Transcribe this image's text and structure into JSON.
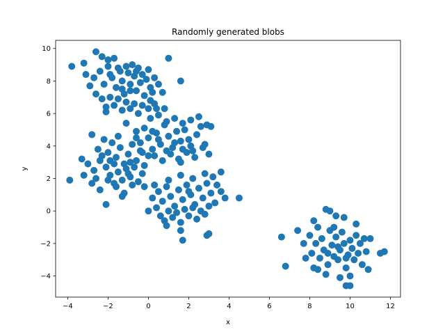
{
  "chart_data": {
    "type": "scatter",
    "title": "Randomly generated blobs",
    "xlabel": "x",
    "ylabel": "y",
    "xlim": [
      -4.6,
      12.5
    ],
    "ylim": [
      -5.3,
      10.5
    ],
    "xticks": [
      -4,
      -2,
      0,
      2,
      4,
      6,
      8,
      10,
      12
    ],
    "yticks": [
      -4,
      -2,
      0,
      2,
      4,
      6,
      8,
      10
    ],
    "grid": false,
    "marker_color": "#1f77b4",
    "series": [
      {
        "points": [
          [
            -3.8,
            8.9
          ],
          [
            -3.2,
            9.1
          ],
          [
            -2.6,
            9.8
          ],
          [
            -2.3,
            9.5
          ],
          [
            -2.0,
            9.3
          ],
          [
            -1.7,
            9.4
          ],
          [
            -3.1,
            8.4
          ],
          [
            -2.7,
            8.2
          ],
          [
            -2.4,
            8.6
          ],
          [
            -2.2,
            7.8
          ],
          [
            -2.0,
            8.9
          ],
          [
            -1.8,
            8.2
          ],
          [
            -1.6,
            7.6
          ],
          [
            -1.5,
            8.8
          ],
          [
            -1.3,
            8.0
          ],
          [
            -1.2,
            7.2
          ],
          [
            -1.0,
            8.5
          ],
          [
            -0.9,
            7.8
          ],
          [
            -0.8,
            9.0
          ],
          [
            -0.7,
            8.3
          ],
          [
            -0.6,
            7.4
          ],
          [
            -0.5,
            8.8
          ],
          [
            -0.4,
            7.9
          ],
          [
            -0.3,
            8.4
          ],
          [
            -0.2,
            7.1
          ],
          [
            -0.1,
            8.1
          ],
          [
            0.0,
            8.7
          ],
          [
            0.1,
            7.6
          ],
          [
            0.3,
            8.2
          ],
          [
            0.5,
            7.8
          ],
          [
            0.7,
            7.3
          ],
          [
            1.0,
            9.4
          ],
          [
            1.6,
            8.0
          ],
          [
            -2.9,
            7.7
          ],
          [
            -2.6,
            7.2
          ],
          [
            -2.3,
            6.9
          ],
          [
            -2.1,
            6.4
          ],
          [
            -1.9,
            7.0
          ],
          [
            -1.7,
            6.5
          ],
          [
            -1.5,
            6.9
          ],
          [
            -1.3,
            6.2
          ],
          [
            -1.1,
            6.7
          ],
          [
            -0.9,
            6.3
          ],
          [
            -0.7,
            6.6
          ],
          [
            -0.5,
            6.0
          ],
          [
            -0.3,
            6.5
          ],
          [
            0.1,
            6.8
          ],
          [
            0.4,
            6.3
          ],
          [
            -1.9,
            8.4
          ],
          [
            -1.4,
            8.6
          ],
          [
            -1.1,
            8.9
          ],
          [
            -0.6,
            8.6
          ],
          [
            -0.9,
            7.4
          ],
          [
            -1.3,
            7.5
          ],
          [
            0.2,
            7.3
          ],
          [
            -2.1,
            6.1
          ]
        ]
      },
      {
        "points": [
          [
            -2.8,
            4.7
          ],
          [
            -2.5,
            3.8
          ],
          [
            -2.2,
            4.4
          ],
          [
            -2.0,
            3.6
          ],
          [
            -1.8,
            4.2
          ],
          [
            -1.6,
            3.3
          ],
          [
            -1.4,
            3.9
          ],
          [
            -1.2,
            2.9
          ],
          [
            -1.0,
            3.5
          ],
          [
            -0.8,
            4.1
          ],
          [
            -0.6,
            3.1
          ],
          [
            -0.4,
            3.7
          ],
          [
            -0.2,
            2.8
          ],
          [
            0.0,
            3.4
          ],
          [
            -3.3,
            3.2
          ],
          [
            -3.0,
            2.9
          ],
          [
            -2.7,
            2.5
          ],
          [
            -2.4,
            3.1
          ],
          [
            -2.1,
            2.7
          ],
          [
            -1.9,
            2.2
          ],
          [
            -1.7,
            2.9
          ],
          [
            -1.5,
            2.4
          ],
          [
            -1.3,
            1.9
          ],
          [
            -1.1,
            2.6
          ],
          [
            -0.9,
            2.1
          ],
          [
            -0.7,
            2.7
          ],
          [
            -0.5,
            1.8
          ],
          [
            -0.3,
            2.3
          ],
          [
            -3.9,
            1.9
          ],
          [
            -3.2,
            2.2
          ],
          [
            -2.8,
            1.7
          ],
          [
            -2.4,
            1.3
          ],
          [
            -2.0,
            1.9
          ],
          [
            -1.6,
            1.5
          ],
          [
            -1.2,
            1.1
          ],
          [
            -0.8,
            1.6
          ],
          [
            -2.1,
            0.4
          ],
          [
            -1.3,
            0.9
          ],
          [
            -1.1,
            5.4
          ],
          [
            -0.6,
            4.5
          ],
          [
            -1.9,
            3.1
          ],
          [
            -1.5,
            4.6
          ],
          [
            -2.3,
            3.4
          ],
          [
            -0.9,
            3.0
          ],
          [
            -2.6,
            2.0
          ],
          [
            -1.0,
            2.3
          ],
          [
            -0.2,
            1.5
          ],
          [
            -1.7,
            1.7
          ]
        ]
      },
      {
        "points": [
          [
            -0.6,
            4.9
          ],
          [
            -0.4,
            4.2
          ],
          [
            -0.2,
            5.1
          ],
          [
            0.0,
            4.5
          ],
          [
            0.2,
            3.8
          ],
          [
            0.4,
            4.8
          ],
          [
            0.6,
            4.1
          ],
          [
            0.8,
            5.3
          ],
          [
            1.0,
            4.6
          ],
          [
            1.2,
            3.9
          ],
          [
            1.4,
            4.9
          ],
          [
            1.6,
            4.3
          ],
          [
            1.8,
            5.0
          ],
          [
            2.0,
            4.4
          ],
          [
            2.2,
            3.7
          ],
          [
            2.4,
            4.7
          ],
          [
            2.6,
            5.2
          ],
          [
            2.8,
            4.1
          ],
          [
            0.1,
            5.7
          ],
          [
            0.5,
            5.9
          ],
          [
            0.9,
            5.5
          ],
          [
            1.3,
            5.7
          ],
          [
            1.7,
            5.4
          ],
          [
            2.1,
            5.6
          ],
          [
            2.5,
            5.8
          ],
          [
            2.9,
            5.3
          ],
          [
            3.1,
            5.2
          ],
          [
            0.3,
            3.4
          ],
          [
            0.7,
            3.1
          ],
          [
            1.1,
            3.5
          ],
          [
            1.5,
            3.2
          ],
          [
            1.9,
            3.6
          ],
          [
            2.3,
            3.3
          ],
          [
            2.7,
            3.9
          ],
          [
            3.0,
            3.5
          ],
          [
            -0.3,
            3.6
          ],
          [
            0.0,
            6.3
          ],
          [
            0.3,
            6.6
          ],
          [
            0.8,
            6.3
          ],
          [
            1.6,
            3.0
          ],
          [
            0.5,
            4.4
          ],
          [
            1.3,
            4.2
          ],
          [
            2.1,
            4.0
          ],
          [
            0.9,
            3.7
          ],
          [
            1.7,
            3.8
          ],
          [
            0.2,
            4.9
          ]
        ]
      },
      {
        "points": [
          [
            0.5,
            1.2
          ],
          [
            0.7,
            0.6
          ],
          [
            0.9,
            1.5
          ],
          [
            1.1,
            0.9
          ],
          [
            1.3,
            0.3
          ],
          [
            1.5,
            1.3
          ],
          [
            1.7,
            0.7
          ],
          [
            1.9,
            1.6
          ],
          [
            2.1,
            1.0
          ],
          [
            2.3,
            0.4
          ],
          [
            2.5,
            1.4
          ],
          [
            2.7,
            0.8
          ],
          [
            2.9,
            1.7
          ],
          [
            3.1,
            1.1
          ],
          [
            3.3,
            0.5
          ],
          [
            0.2,
            0.8
          ],
          [
            0.4,
            0.2
          ],
          [
            0.6,
            -0.3
          ],
          [
            0.8,
            -0.6
          ],
          [
            1.0,
            0.0
          ],
          [
            1.2,
            -0.4
          ],
          [
            1.4,
            -0.1
          ],
          [
            1.6,
            -0.7
          ],
          [
            1.8,
            0.1
          ],
          [
            2.0,
            -0.3
          ],
          [
            2.2,
            0.2
          ],
          [
            2.4,
            -0.5
          ],
          [
            2.6,
            0.0
          ],
          [
            2.8,
            -0.2
          ],
          [
            3.0,
            0.3
          ],
          [
            3.4,
            1.6
          ],
          [
            3.6,
            1.2
          ],
          [
            3.8,
            0.8
          ],
          [
            4.5,
            0.8
          ],
          [
            3.6,
            2.4
          ],
          [
            3.2,
            2.1
          ],
          [
            2.8,
            2.3
          ],
          [
            2.2,
            2.0
          ],
          [
            1.6,
            2.2
          ],
          [
            1.0,
            1.9
          ],
          [
            0.0,
            0.0
          ],
          [
            0.9,
            -0.9
          ],
          [
            1.6,
            -1.2
          ],
          [
            1.7,
            -1.8
          ],
          [
            2.9,
            -1.5
          ],
          [
            3.0,
            -1.4
          ],
          [
            0.3,
            1.6
          ],
          [
            2.0,
            1.2
          ]
        ]
      },
      {
        "points": [
          [
            6.6,
            -1.6
          ],
          [
            6.8,
            -3.4
          ],
          [
            7.4,
            -1.2
          ],
          [
            7.7,
            -2.0
          ],
          [
            7.8,
            -2.9
          ],
          [
            8.0,
            -1.5
          ],
          [
            8.1,
            -2.6
          ],
          [
            8.2,
            -3.5
          ],
          [
            8.3,
            -2.0
          ],
          [
            8.4,
            -1.0
          ],
          [
            8.5,
            -2.9
          ],
          [
            8.6,
            -1.7
          ],
          [
            8.7,
            -2.4
          ],
          [
            8.8,
            0.1
          ],
          [
            8.9,
            -3.3
          ],
          [
            9.0,
            -1.2
          ],
          [
            9.1,
            -2.1
          ],
          [
            9.2,
            -2.8
          ],
          [
            9.3,
            -1.6
          ],
          [
            9.4,
            -3.0
          ],
          [
            9.5,
            -2.4
          ],
          [
            9.6,
            -1.3
          ],
          [
            9.7,
            -2.0
          ],
          [
            9.8,
            -3.5
          ],
          [
            9.9,
            -2.7
          ],
          [
            10.0,
            -1.8
          ],
          [
            10.1,
            -2.3
          ],
          [
            10.2,
            -3.0
          ],
          [
            10.3,
            -1.5
          ],
          [
            10.4,
            -2.6
          ],
          [
            10.5,
            -2.0
          ],
          [
            10.6,
            -3.3
          ],
          [
            10.7,
            -1.7
          ],
          [
            10.8,
            -2.5
          ],
          [
            10.9,
            -3.6
          ],
          [
            11.0,
            -1.7
          ],
          [
            11.5,
            -2.6
          ],
          [
            11.7,
            -2.5
          ],
          [
            9.3,
            -0.3
          ],
          [
            9.7,
            -0.4
          ],
          [
            9.0,
            0.0
          ],
          [
            9.5,
            -4.1
          ],
          [
            9.8,
            -4.6
          ],
          [
            10.0,
            -4.6
          ],
          [
            10.0,
            -4.0
          ],
          [
            8.4,
            -3.6
          ],
          [
            8.8,
            -3.9
          ],
          [
            9.4,
            -2.2
          ],
          [
            8.9,
            -2.6
          ],
          [
            9.8,
            -2.9
          ],
          [
            8.2,
            -0.6
          ],
          [
            10.3,
            -0.8
          ],
          [
            9.2,
            -1.0
          ]
        ]
      }
    ]
  }
}
